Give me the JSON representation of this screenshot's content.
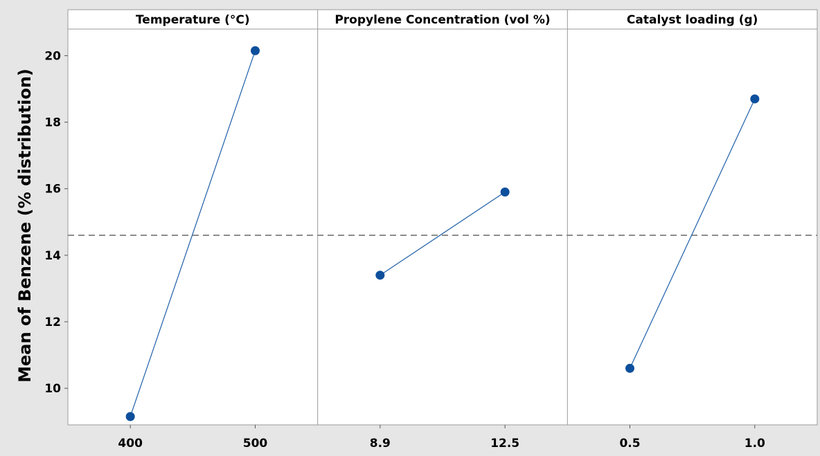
{
  "chart_data": {
    "type": "line",
    "ylabel": "Mean of Benzene (% distribution)",
    "ylim": [
      8.9,
      20.8
    ],
    "yticks": [
      10,
      12,
      14,
      16,
      18,
      20
    ],
    "reference_line": 14.6,
    "grid": false,
    "panels": [
      {
        "title": "Temperature (°C)",
        "categories": [
          "400",
          "500"
        ],
        "values": [
          9.15,
          20.15
        ]
      },
      {
        "title": "Propylene Concentration (vol %)",
        "categories": [
          "8.9",
          "12.5"
        ],
        "values": [
          13.4,
          15.9
        ]
      },
      {
        "title": "Catalyst loading (g)",
        "categories": [
          "0.5",
          "1.0"
        ],
        "values": [
          10.6,
          18.7
        ]
      }
    ],
    "colors": {
      "series": "#1f5fa8",
      "marker": "#0d4f9c",
      "reference": "#8c8c8c",
      "plot_bg": "#ffffff",
      "figure_bg": "#e6e6e6"
    }
  }
}
